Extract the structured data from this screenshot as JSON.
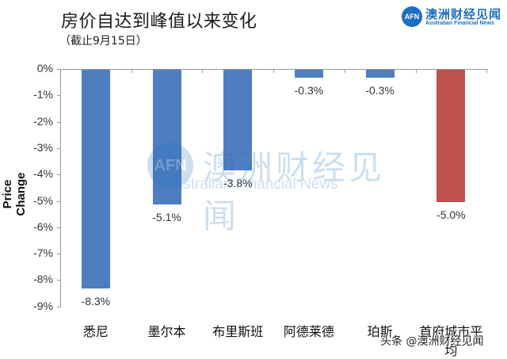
{
  "header": {
    "title": "房价自达到峰值以来变化",
    "subtitle": "（截止9月15日）"
  },
  "logo": {
    "mark": "AFN",
    "name_cn": "澳洲财经见闻",
    "name_en": "Australian Financial News"
  },
  "watermark": {
    "mark": "AFN",
    "name_cn": "澳洲财经见闻",
    "name_en": "Australian Financial News"
  },
  "footer": {
    "credit": "头条 @澳洲财经见闻"
  },
  "colors": {
    "bar_blue": "#4f7ec0",
    "bar_red": "#c0504d",
    "axis": "#999999"
  },
  "chart_data": {
    "type": "bar",
    "title": "房价自达到峰值以来变化",
    "subtitle": "（截止9月15日）",
    "xlabel": "",
    "ylabel": "Price Change",
    "ylim": [
      -9,
      0
    ],
    "yticks": [
      "0%",
      "-1%",
      "-2%",
      "-3%",
      "-4%",
      "-5%",
      "-6%",
      "-7%",
      "-8%",
      "-9%"
    ],
    "categories": [
      "悉尼",
      "墨尔本",
      "布里斯班",
      "阿德莱德",
      "珀斯",
      "首府城市平均"
    ],
    "values": [
      -8.3,
      -5.1,
      -3.8,
      -0.3,
      -0.3,
      -5.0
    ],
    "labels": [
      "-8.3%",
      "-5.1%",
      "-3.8%",
      "-0.3%",
      "-0.3%",
      "-5.0%"
    ],
    "bar_colors": [
      "#4f7ec0",
      "#4f7ec0",
      "#4f7ec0",
      "#4f7ec0",
      "#4f7ec0",
      "#c0504d"
    ],
    "grid": false,
    "legend": null
  }
}
